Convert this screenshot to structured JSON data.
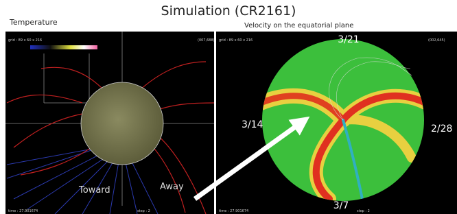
{
  "title": "Simulation (CR2161)",
  "left_panel": {
    "label": "Temperature",
    "grid": "grid : 89 x 60 x 216",
    "coords": "(007,688)",
    "time": "time : 27.901674",
    "step": "step : 2",
    "toward": "Toward",
    "away": "Away"
  },
  "right_panel": {
    "label": "Velocity on the equatorial plane",
    "grid": "grid : 89 x 60 x 216",
    "coords": "(002,645)",
    "time": "time : 27.901674",
    "step": "step : 2",
    "dates": {
      "top": "3/21",
      "left": "3/14",
      "right": "2/28",
      "bottom": "3/7"
    }
  }
}
